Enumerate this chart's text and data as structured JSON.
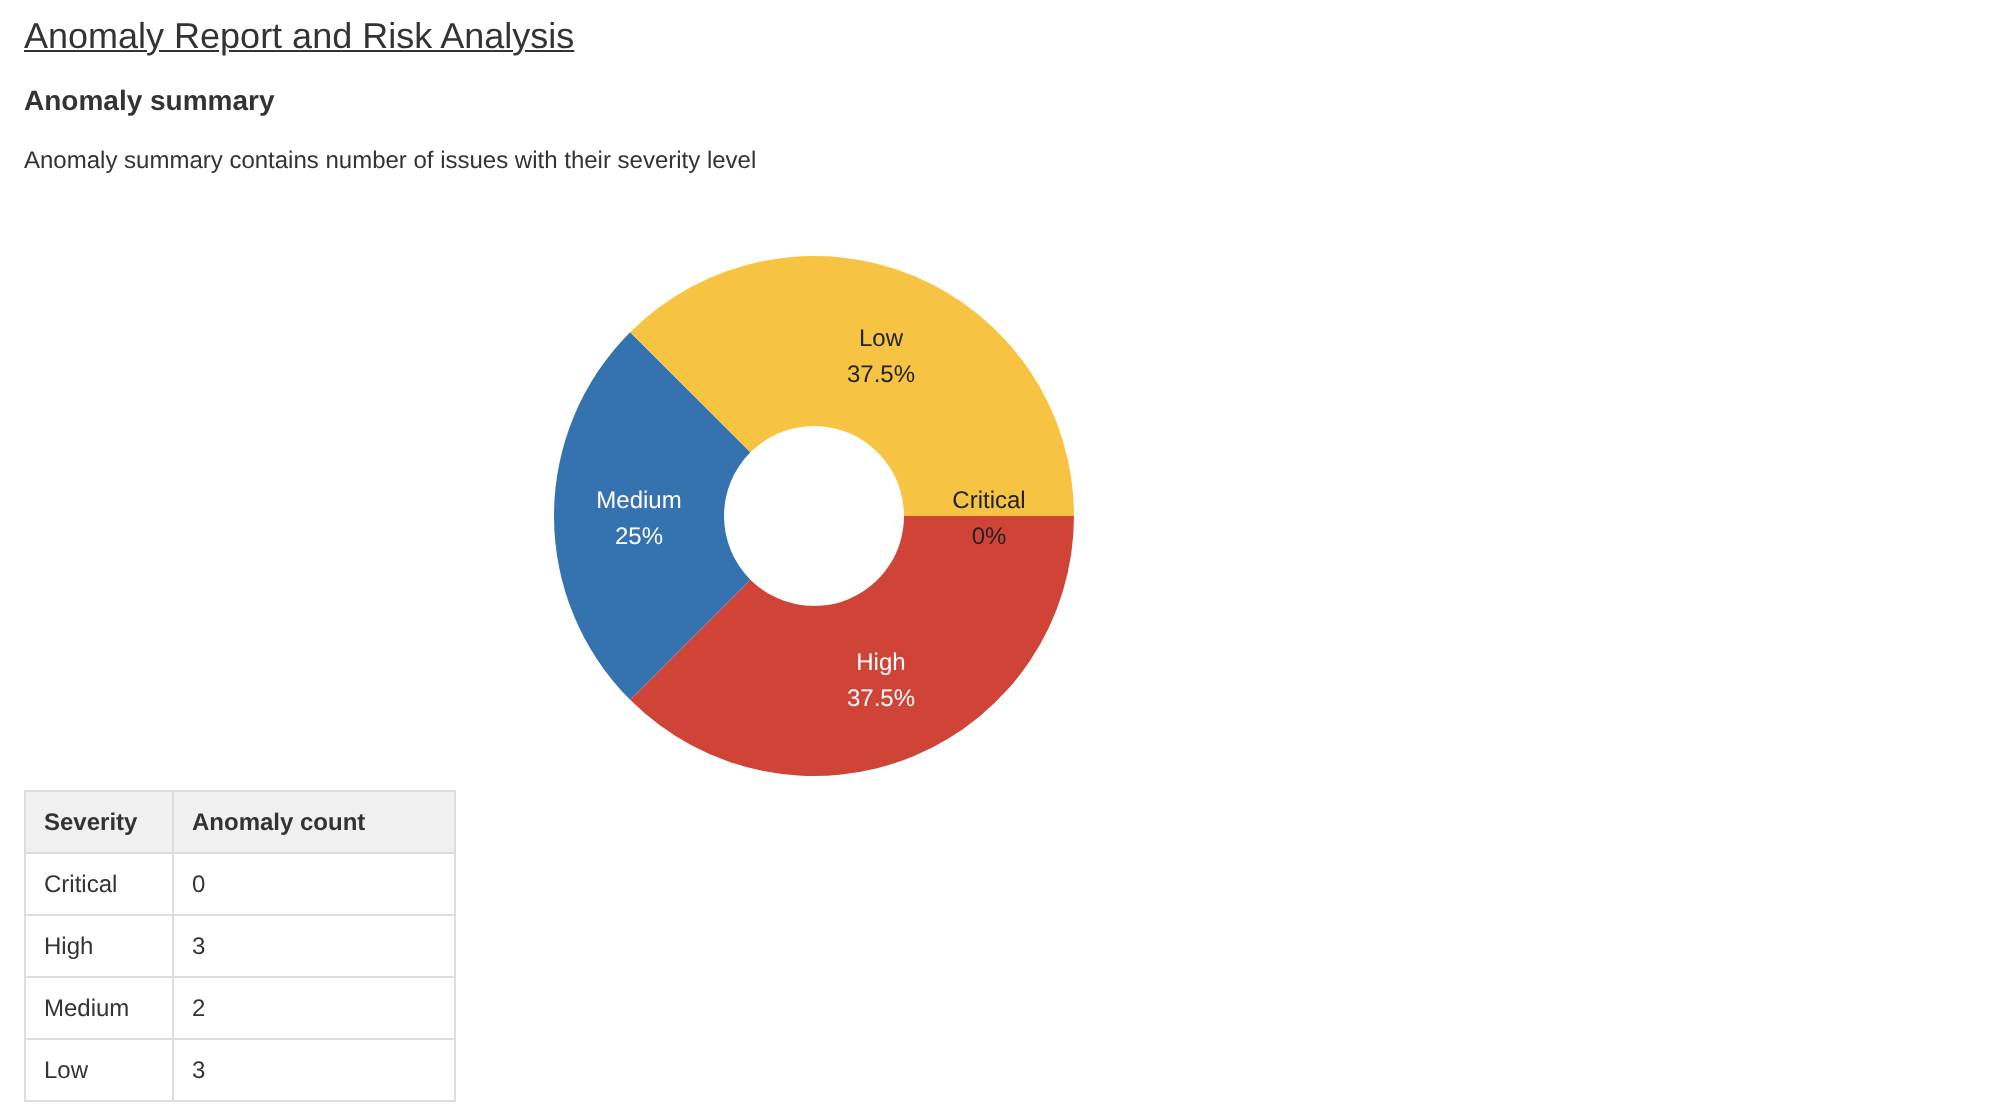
{
  "chart_data": [
    {
      "type": "donut",
      "title": "Anomaly Report and Risk Analysis",
      "subtitle": "Anomaly summary",
      "annotations": [
        "Anomaly summary contains number of issues with their severity level"
      ],
      "categories": [
        "Critical",
        "High",
        "Medium",
        "Low"
      ],
      "values": [
        0,
        37.5,
        25,
        37.5
      ],
      "colors": [
        "#8eb021",
        "#d04437",
        "#3572b0",
        "#f6c342"
      ],
      "value_labels": [
        "0%",
        "37.5%",
        "25%",
        "37.5%"
      ]
    },
    {
      "type": "other",
      "categories": [
        "Critical",
        "High",
        "Medium",
        "Low"
      ],
      "values": [
        0,
        3,
        2,
        3
      ],
      "data_labels": true,
      "xlabel": "Severity",
      "ylabel": "Anomaly count"
    }
  ]
}
